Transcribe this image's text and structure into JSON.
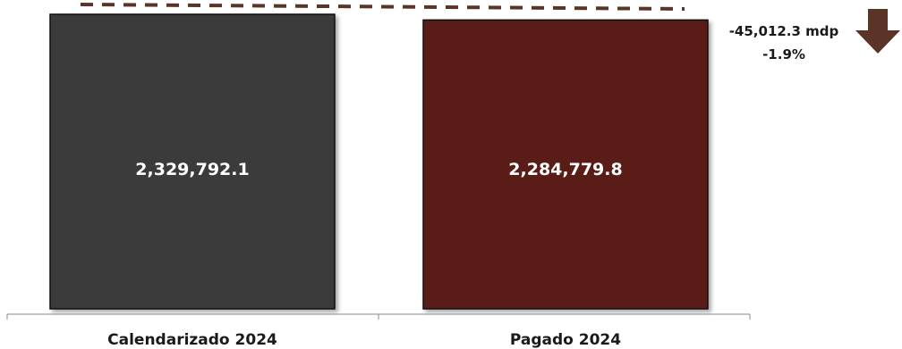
{
  "chart_data": {
    "type": "bar",
    "categories": [
      "Calendarizado 2024",
      "Pagado 2024"
    ],
    "values": [
      2329792.1,
      2284779.8
    ],
    "value_labels": [
      "2,329,792.1",
      "2,284,779.8"
    ],
    "colors": [
      "#3a3a3a",
      "#5a1f18"
    ],
    "reference_line": {
      "value": 2329792.1,
      "style": "dashed",
      "color": "#5a3426"
    },
    "annotation": {
      "difference_label": "-45,012.3 mdp",
      "percent_label": "-1.9%",
      "arrow_icon": "down-arrow-icon",
      "arrow_color": "#5a3426"
    },
    "title": "",
    "xlabel": "",
    "ylabel": "",
    "ylim": [
      0,
      2329792.1
    ],
    "grid": false,
    "legend": "none"
  }
}
